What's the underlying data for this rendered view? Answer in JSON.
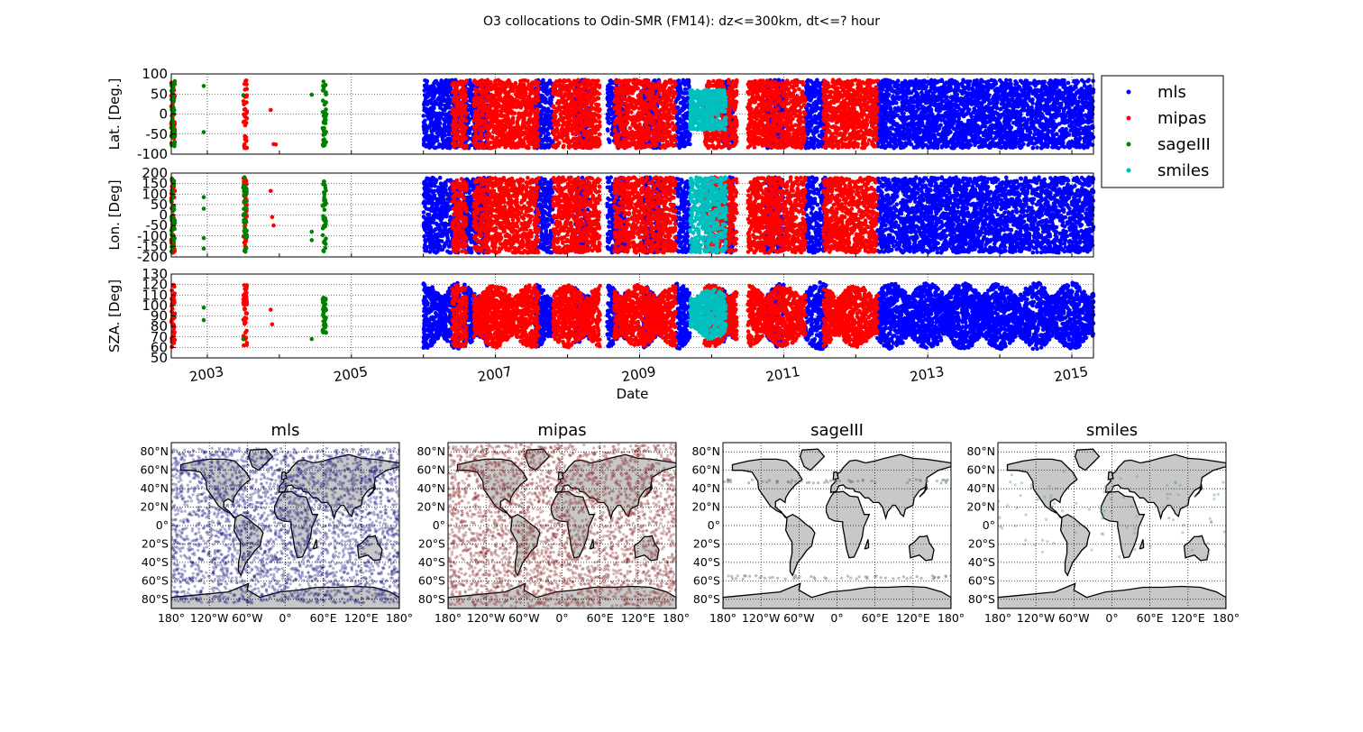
{
  "figure": {
    "title": "O3 collocations to Odin-SMR (FM14): dz<=300km, dt<=? hour"
  },
  "colors": {
    "mls": "#0000ff",
    "mipas": "#ff0000",
    "sageIII": "#008000",
    "smiles": "#00bfbf",
    "land": "#c8c8c8",
    "mls_map": "#1a1a80",
    "mipas_map": "#8a2a2a",
    "sageIII_map": "#5a7a5a",
    "smiles_map": "#6aa0a0"
  },
  "legend": [
    "mls",
    "mipas",
    "sageIII",
    "smiles"
  ],
  "chart_data": [
    {
      "type": "scatter",
      "panel": "latitude-timeseries",
      "ylabel": "Lat. [Deg.]",
      "xlim": [
        2002.5,
        2015.3
      ],
      "ylim": [
        -100,
        100
      ],
      "yticks": [
        -100,
        -50,
        0,
        50,
        100
      ],
      "grid": true,
      "series": [
        {
          "name": "mls",
          "segments": [
            [
              2006.0,
              2006.5
            ],
            [
              2006.55,
              2006.9
            ],
            [
              2007.55,
              2007.8
            ],
            [
              2008.1,
              2008.3
            ],
            [
              2008.55,
              2008.8
            ],
            [
              2009.05,
              2009.3
            ],
            [
              2009.5,
              2009.7
            ],
            [
              2010.15,
              2010.3
            ],
            [
              2010.75,
              2011.0
            ],
            [
              2011.3,
              2011.6
            ],
            [
              2012.3,
              2015.3
            ]
          ],
          "yrange": [
            -85,
            85
          ]
        },
        {
          "name": "mipas",
          "segments": [
            [
              2002.5,
              2002.55
            ],
            [
              2003.5,
              2003.55
            ],
            [
              2006.4,
              2006.6
            ],
            [
              2006.7,
              2007.6
            ],
            [
              2007.8,
              2008.45
            ],
            [
              2008.65,
              2009.5
            ],
            [
              2009.9,
              2010.35
            ],
            [
              2010.5,
              2011.3
            ],
            [
              2011.55,
              2012.3
            ]
          ],
          "points": [
            [
              2003.88,
              10
            ],
            [
              2003.92,
              -75
            ],
            [
              2003.95,
              -76
            ]
          ],
          "yrange": [
            -85,
            85
          ]
        },
        {
          "name": "sageIII",
          "segments": [
            [
              2002.5,
              2002.55
            ],
            [
              2004.6,
              2004.65
            ]
          ],
          "points": [
            [
              2002.95,
              70
            ],
            [
              2002.95,
              -45
            ],
            [
              2004.45,
              48
            ],
            [
              2003.5,
              47
            ]
          ],
          "yrange": [
            -80,
            82
          ]
        },
        {
          "name": "smiles",
          "segments": [
            [
              2009.7,
              2010.2
            ]
          ],
          "yrange": [
            -40,
            60
          ]
        }
      ]
    },
    {
      "type": "scatter",
      "panel": "longitude-timeseries",
      "ylabel": "Lon. [Deg]",
      "xlim": [
        2002.5,
        2015.3
      ],
      "ylim": [
        -200,
        200
      ],
      "yticks": [
        -200,
        -150,
        -100,
        -50,
        0,
        50,
        100,
        150,
        200
      ],
      "grid": true,
      "series": [
        {
          "name": "mls",
          "segments": [
            [
              2006.0,
              2006.5
            ],
            [
              2006.55,
              2006.9
            ],
            [
              2007.55,
              2007.8
            ],
            [
              2008.1,
              2008.3
            ],
            [
              2008.55,
              2008.8
            ],
            [
              2009.05,
              2009.3
            ],
            [
              2009.5,
              2009.7
            ],
            [
              2010.15,
              2010.3
            ],
            [
              2010.75,
              2011.0
            ],
            [
              2011.3,
              2011.6
            ],
            [
              2012.3,
              2015.3
            ]
          ],
          "yrange": [
            -180,
            180
          ]
        },
        {
          "name": "mipas",
          "segments": [
            [
              2002.5,
              2002.55
            ],
            [
              2003.5,
              2003.55
            ],
            [
              2006.4,
              2006.6
            ],
            [
              2006.7,
              2007.6
            ],
            [
              2007.8,
              2008.45
            ],
            [
              2008.65,
              2009.5
            ],
            [
              2009.9,
              2010.35
            ],
            [
              2010.5,
              2011.3
            ],
            [
              2011.55,
              2012.3
            ]
          ],
          "points": [
            [
              2003.88,
              115
            ],
            [
              2003.9,
              -10
            ],
            [
              2003.92,
              -50
            ]
          ],
          "yrange": [
            -180,
            180
          ]
        },
        {
          "name": "sageIII",
          "segments": [
            [
              2002.5,
              2002.55
            ],
            [
              2003.5,
              2003.55
            ],
            [
              2004.6,
              2004.65
            ]
          ],
          "points": [
            [
              2002.95,
              85
            ],
            [
              2002.95,
              30
            ],
            [
              2002.95,
              -110
            ],
            [
              2002.95,
              -160
            ],
            [
              2004.45,
              -80
            ],
            [
              2004.45,
              -120
            ]
          ],
          "yrange": [
            -180,
            180
          ]
        },
        {
          "name": "smiles",
          "segments": [
            [
              2009.7,
              2010.2
            ]
          ],
          "yrange": [
            -180,
            180
          ]
        }
      ]
    },
    {
      "type": "scatter",
      "panel": "sza-timeseries",
      "ylabel": "SZA. [Deg]",
      "xlabel": "Date",
      "xlim": [
        2002.5,
        2015.3
      ],
      "ylim": [
        50,
        130
      ],
      "yticks": [
        50,
        60,
        70,
        80,
        90,
        100,
        110,
        120,
        130
      ],
      "xticks": [
        2003,
        2005,
        2007,
        2009,
        2011,
        2013,
        2015
      ],
      "grid": true,
      "series": [
        {
          "name": "mls",
          "segments": [
            [
              2006.0,
              2006.5
            ],
            [
              2006.55,
              2006.9
            ],
            [
              2007.55,
              2007.8
            ],
            [
              2008.1,
              2008.3
            ],
            [
              2008.55,
              2008.8
            ],
            [
              2009.05,
              2009.3
            ],
            [
              2009.5,
              2009.7
            ],
            [
              2010.15,
              2010.3
            ],
            [
              2010.75,
              2011.0
            ],
            [
              2011.3,
              2011.6
            ],
            [
              2012.3,
              2015.3
            ]
          ],
          "yrange": [
            58,
            122
          ]
        },
        {
          "name": "mipas",
          "segments": [
            [
              2002.5,
              2002.55
            ],
            [
              2003.5,
              2003.55
            ],
            [
              2006.4,
              2006.6
            ],
            [
              2006.7,
              2007.6
            ],
            [
              2007.8,
              2008.45
            ],
            [
              2008.65,
              2009.5
            ],
            [
              2009.9,
              2010.35
            ],
            [
              2010.5,
              2011.3
            ],
            [
              2011.55,
              2012.3
            ]
          ],
          "points": [
            [
              2003.88,
              96
            ],
            [
              2003.9,
              82
            ]
          ],
          "yrange": [
            60,
            120
          ]
        },
        {
          "name": "sageIII",
          "segments": [
            [
              2004.6,
              2004.65
            ]
          ],
          "points": [
            [
              2002.95,
              98
            ],
            [
              2002.95,
              86
            ],
            [
              2004.45,
              68
            ],
            [
              2003.5,
              68
            ]
          ],
          "yrange": [
            70,
            110
          ]
        },
        {
          "name": "smiles",
          "segments": [
            [
              2009.7,
              2010.2
            ]
          ],
          "yrange": [
            68,
            116
          ]
        }
      ]
    },
    {
      "type": "map-scatter",
      "title": "mls",
      "series": "mls",
      "xlim": [
        -180,
        180
      ],
      "ylim": [
        -90,
        90
      ],
      "density": "dense",
      "lat_band": [
        -84,
        84
      ]
    },
    {
      "type": "map-scatter",
      "title": "mipas",
      "series": "mipas",
      "xlim": [
        -180,
        180
      ],
      "ylim": [
        -90,
        90
      ],
      "density": "dense",
      "lat_band": [
        -88,
        88
      ]
    },
    {
      "type": "map-scatter",
      "title": "sageIII",
      "series": "sageIII",
      "xlim": [
        -180,
        180
      ],
      "ylim": [
        -90,
        90
      ],
      "density": "sparse",
      "lat_rows": [
        48,
        -56
      ]
    },
    {
      "type": "map-scatter",
      "title": "smiles",
      "series": "smiles",
      "xlim": [
        -180,
        180
      ],
      "ylim": [
        -90,
        90
      ],
      "density": "sparse",
      "lat_band": [
        -38,
        60
      ]
    }
  ],
  "map_axes": {
    "lat_ticks": [
      "80°N",
      "60°N",
      "40°N",
      "20°N",
      "0°",
      "20°S",
      "40°S",
      "60°S",
      "80°S"
    ],
    "lat_values": [
      80,
      60,
      40,
      20,
      0,
      -20,
      -40,
      -60,
      -80
    ],
    "lon_ticks": [
      "180°",
      "120°W",
      "60°W",
      "0°",
      "60°E",
      "120°E",
      "180°"
    ],
    "lon_values": [
      -180,
      -120,
      -60,
      0,
      60,
      120,
      180
    ]
  }
}
